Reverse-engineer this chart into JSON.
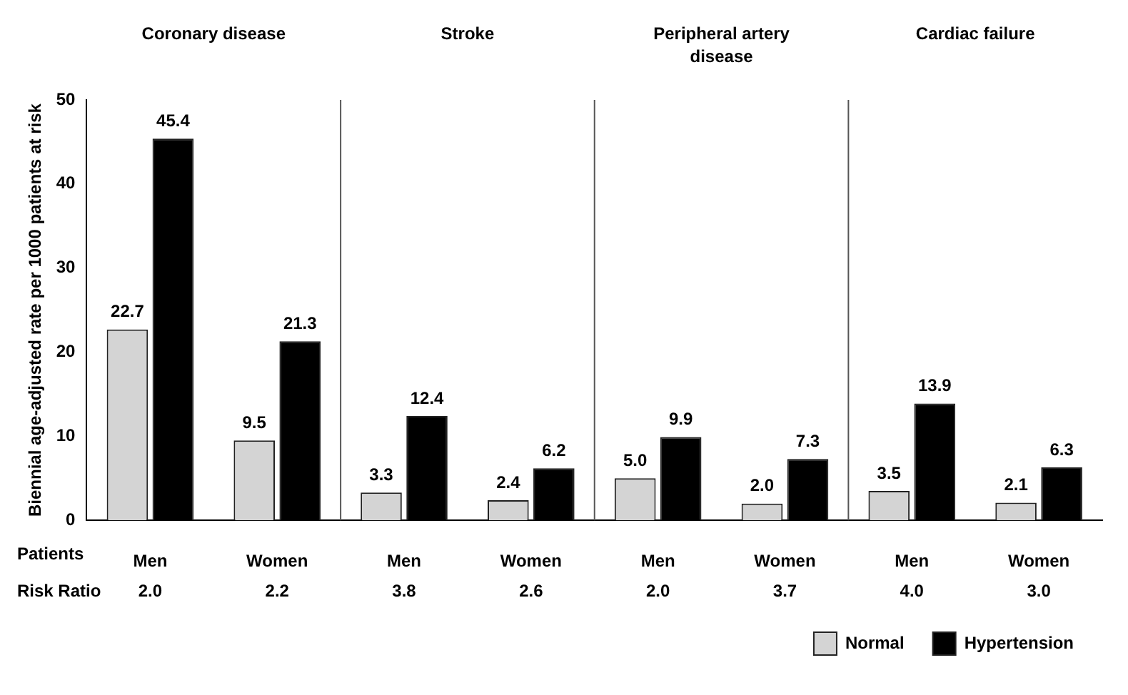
{
  "chart_data": {
    "type": "bar",
    "categories": [
      "Men",
      "Women",
      "Men",
      "Women",
      "Men",
      "Women",
      "Men",
      "Women"
    ],
    "xlabel": "Patients",
    "ylabel": "Biennial age-adjusted rate per 1000 patients at risk",
    "series": [
      {
        "name": "Normal",
        "color": "#d4d4d4",
        "values": [
          22.7,
          9.5,
          3.3,
          2.4,
          5.0,
          2.0,
          3.5,
          2.1
        ],
        "value_labels": [
          "22.7",
          "9.5",
          "3.3",
          "2.4",
          "5.0",
          "2.0",
          "3.5",
          "2.1"
        ]
      },
      {
        "name": "Hypertension",
        "color": "#000000",
        "values": [
          45.4,
          21.3,
          12.4,
          6.2,
          9.9,
          7.3,
          13.9,
          6.3
        ],
        "value_labels": [
          "45.4",
          "21.3",
          "12.4",
          "6.2",
          "9.9",
          "7.3",
          "13.9",
          "6.3"
        ]
      }
    ],
    "ylim": [
      0,
      50
    ],
    "yticks": [
      0,
      10,
      20,
      30,
      40,
      50
    ],
    "grid": false,
    "legend": "bottom right",
    "annotations": [
      "Coronary disease",
      "Stroke",
      "Peripheral artery disease",
      "Cardiac failure",
      "Risk Ratio",
      "2.0",
      "2.2",
      "3.8",
      "2.6",
      "2.0",
      "3.7",
      "4.0",
      "3.0"
    ]
  }
}
